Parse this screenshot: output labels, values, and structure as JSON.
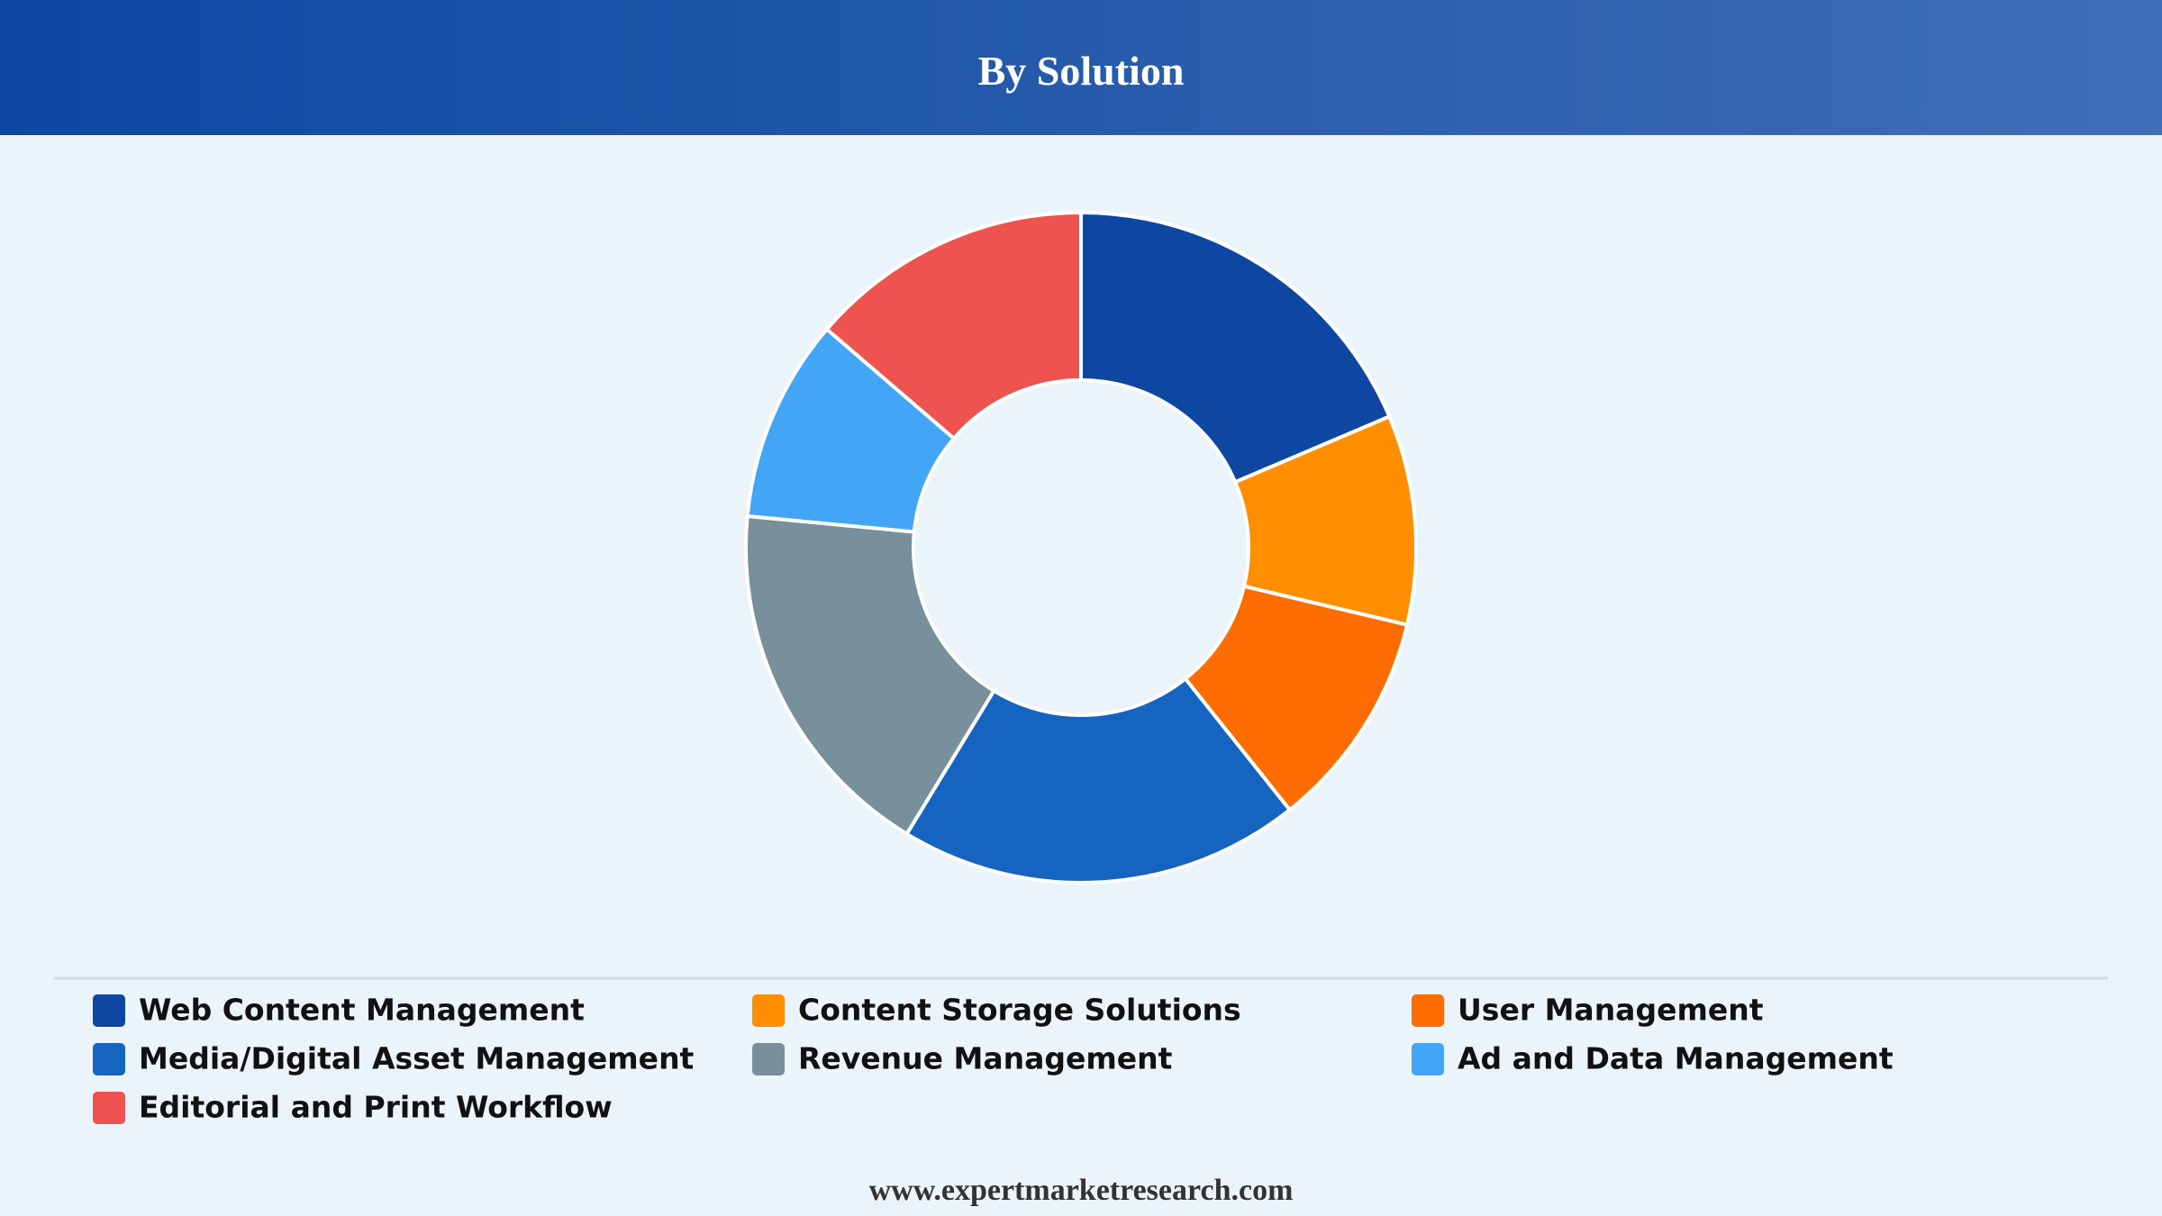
{
  "chart_data": {
    "type": "donut",
    "title": "By Solution",
    "categories": [
      "Web Content Management",
      "Content Storage Solutions",
      "User Management",
      "Media/Digital Asset Management",
      "Revenue Management",
      "Ad and Data Management",
      "Editorial and Print Workflow"
    ],
    "values": [
      18.6,
      10.1,
      10.6,
      19.4,
      17.8,
      9.8,
      13.7
    ],
    "colors": [
      "#0d47a1",
      "#ff8f00",
      "#ff6d00",
      "#1565c0",
      "#78909c",
      "#42a5f5",
      "#ef5350"
    ]
  },
  "footer": "www.expertmarketresearch.com"
}
